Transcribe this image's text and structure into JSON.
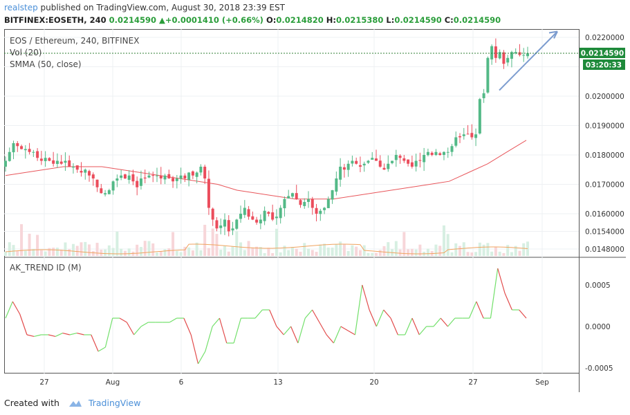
{
  "header": {
    "author": "realstep",
    "published_text": "published on TradingView.com, August 30, 2018 23:39 EST",
    "symbol_line": "BITFINEX:EOSETH, 240",
    "last": "0.0214590",
    "arrow": "▲",
    "change": "+0.0001410 (+0.66%)",
    "o_label": "O:",
    "o_value": "0.0214820",
    "h_label": "H:",
    "h_value": "0.0215380",
    "l_label": "L:",
    "l_value": "0.0214590",
    "c_label": "C:",
    "c_value": "0.0214590"
  },
  "legend": {
    "main_title": "EOS / Ethereum, 240, BITFINEX",
    "vol_label": "Vol (20)",
    "smma_label": "SMMA (50, close)",
    "indicator_label": "AK_TREND ID (M)"
  },
  "price_tag": "0.0214590",
  "countdown_tag": "03:20:33",
  "footer": {
    "created_with": "Created with",
    "brand": "TradingView"
  },
  "colors": {
    "up": "#53b987",
    "down": "#eb4d5c",
    "smma": "#e8555a",
    "vol_ma": "#f0a35e",
    "trend_line": "#7c9ccf",
    "osc_up": "#72e06a",
    "osc_down": "#e24b4b"
  },
  "chart_data": {
    "type": "candlestick",
    "price_axis": {
      "ticks": [
        0.0148,
        0.0154,
        0.016,
        0.017,
        0.018,
        0.019,
        0.02,
        0.021,
        0.022
      ],
      "tick_labels": [
        "0.0148000",
        "0.0154000",
        "0.0160000",
        "0.0170000",
        "0.0180000",
        "0.0190000",
        "0.0200000",
        "0.0210000",
        "0.0220000"
      ]
    },
    "osc_axis": {
      "ticks": [
        0.0005,
        0.0,
        -0.0005
      ],
      "tick_labels": [
        "0.0005",
        "0.0000",
        "-0.0005"
      ]
    },
    "x_axis": {
      "tick_labels": [
        "27",
        "Aug",
        "6",
        "13",
        "20",
        "27",
        "Sep"
      ]
    },
    "price_close_path": [
      0.0178,
      0.0181,
      0.0184,
      0.0183,
      0.0182,
      0.0182,
      0.0181,
      0.0181,
      0.0179,
      0.0178,
      0.0179,
      0.0178,
      0.0177,
      0.0178,
      0.0177,
      0.0178,
      0.0176,
      0.0176,
      0.0175,
      0.0174,
      0.0175,
      0.0173,
      0.0172,
      0.0169,
      0.0167,
      0.0167,
      0.0168,
      0.0171,
      0.0172,
      0.0173,
      0.0172,
      0.0173,
      0.0171,
      0.0169,
      0.0172,
      0.0172,
      0.0173,
      0.0173,
      0.0173,
      0.0172,
      0.0173,
      0.0172,
      0.0171,
      0.0172,
      0.0173,
      0.0172,
      0.0174,
      0.0173,
      0.0174,
      0.0176,
      0.0172,
      0.0162,
      0.0158,
      0.0155,
      0.0156,
      0.0158,
      0.0154,
      0.0155,
      0.0158,
      0.016,
      0.0162,
      0.0159,
      0.0158,
      0.0157,
      0.0158,
      0.0161,
      0.016,
      0.0158,
      0.0159,
      0.0162,
      0.0165,
      0.0166,
      0.0167,
      0.0165,
      0.0163,
      0.0164,
      0.0165,
      0.0162,
      0.016,
      0.0161,
      0.0162,
      0.0165,
      0.0168,
      0.0172,
      0.0176,
      0.0175,
      0.0177,
      0.0178,
      0.0177,
      0.0176,
      0.0177,
      0.0178,
      0.0179,
      0.0178,
      0.0176,
      0.0175,
      0.0177,
      0.0178,
      0.018,
      0.0179,
      0.0178,
      0.0177,
      0.0176,
      0.0178,
      0.0178,
      0.018,
      0.0181,
      0.018,
      0.0181,
      0.018,
      0.0181,
      0.0181,
      0.0183,
      0.0186,
      0.0186,
      0.0187,
      0.0187,
      0.0186,
      0.0187,
      0.0199,
      0.0201,
      0.0213,
      0.0217,
      0.0213,
      0.0215,
      0.0211,
      0.0213,
      0.0215,
      0.0215,
      0.0214,
      0.0214,
      0.02146
    ],
    "smma_path": [
      0.0173,
      0.0174,
      0.0175,
      0.0176,
      0.0176,
      0.0176,
      0.0175,
      0.0174,
      0.0173,
      0.0172,
      0.0171,
      0.017,
      0.0168,
      0.0167,
      0.0166,
      0.0165,
      0.0165,
      0.0165,
      0.0166,
      0.0167,
      0.0168,
      0.0169,
      0.017,
      0.0171,
      0.0174,
      0.0177,
      0.0181,
      0.0185
    ],
    "oscillator_path": [
      0.0001,
      0.0003,
      0.00015,
      -0.0001,
      -0.00012,
      -0.0001,
      -0.0001,
      -0.00012,
      -8e-05,
      -0.0001,
      -8e-05,
      -0.0001,
      -0.0001,
      -0.0003,
      -0.00025,
      0.0001,
      0.0001,
      5e-05,
      -0.0001,
      0.0,
      5e-05,
      5e-05,
      5e-05,
      5e-05,
      0.0001,
      0.0001,
      -0.0001,
      -0.00045,
      -0.0003,
      0.0,
      0.0001,
      -0.0002,
      -0.0002,
      0.0001,
      0.0001,
      0.0001,
      0.0002,
      0.0002,
      0.0,
      -0.0001,
      0.0,
      -0.0002,
      0.0001,
      0.0002,
      5e-05,
      -0.0001,
      -0.0002,
      0.0,
      -5e-05,
      -0.0001,
      0.0005,
      0.0002,
      0.0,
      0.0002,
      0.0001,
      -0.0001,
      -0.0001,
      0.0001,
      -0.0001,
      0.0,
      0.0,
      0.0001,
      0.0,
      0.0001,
      0.0001,
      0.0001,
      0.0003,
      0.0001,
      0.0001,
      0.0007,
      0.0004,
      0.0002,
      0.0002,
      0.0001
    ],
    "trend_line": {
      "from": [
        "Aug 29",
        0.0202
      ],
      "to": [
        "Sep 1",
        0.022
      ]
    }
  }
}
